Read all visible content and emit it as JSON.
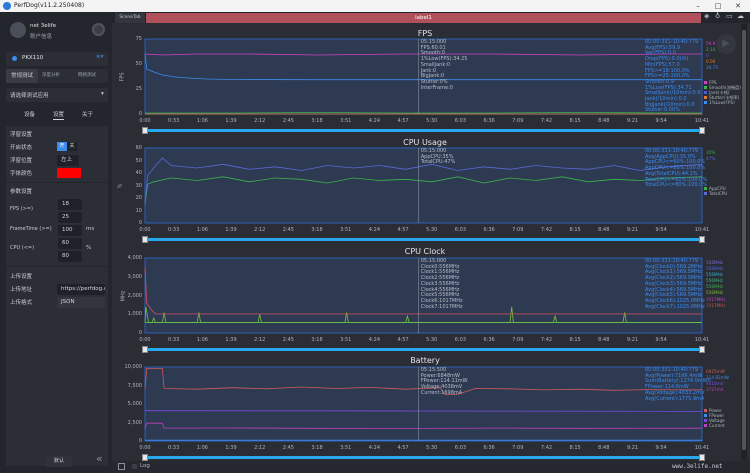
{
  "window": {
    "title": "PerfDog(v11.2.250408)",
    "minimize": "–",
    "maximize": "□",
    "close": "✕"
  },
  "sidebar": {
    "user_name": "net 3elife",
    "account_label": "账户信息",
    "device": "PKX110",
    "mode_tabs": [
      "常规测试",
      "深度分析",
      "网络测试"
    ],
    "app_select_placeholder": "请选择测试应用",
    "sub_tabs": [
      "设备",
      "设置",
      "关于"
    ],
    "float_settings": {
      "title": "浮窗设置",
      "status_label": "开启状态",
      "on": "开",
      "off": "关",
      "position_label": "浮窗位置",
      "position_value": "左上",
      "font_color_label": "字体颜色",
      "font_color": "#ff0000"
    },
    "param_settings": {
      "title": "参数设置",
      "fps_label": "FPS (>=)",
      "fps_values": [
        "18",
        "25"
      ],
      "frametime_label": "FrameTime (>=)",
      "frametime_value": "100",
      "frametime_unit": "ms",
      "cpu_label": "CPU (<=)",
      "cpu_values": [
        "60",
        "80"
      ],
      "cpu_unit": "%"
    },
    "upload_settings": {
      "title": "上传设置",
      "address_label": "上传地址",
      "address_value": "https://perfdog.q",
      "format_label": "上传格式",
      "format_value": "JSON"
    },
    "default_button": "默认",
    "collapse": "«"
  },
  "tabbar": {
    "scene_tab": "SceneTab",
    "label": "label1",
    "label_color": "#b0505a"
  },
  "footer": {
    "log_label": "Log"
  },
  "watermark": "www.3elife.net",
  "time_ticks": [
    "0:00",
    "0:33",
    "1:06",
    "1:39",
    "2:12",
    "2:45",
    "3:18",
    "3:51",
    "4:24",
    "4:57",
    "5:30",
    "6:03",
    "6:36",
    "7:09",
    "7:42",
    "8:15",
    "8:48",
    "9:21",
    "9:54",
    "10:41"
  ],
  "chart_data": [
    {
      "type": "line",
      "title": "FPS",
      "ylabel": "FPS",
      "ylim": [
        0,
        75
      ],
      "yticks": [
        "0",
        "25",
        "50",
        "75"
      ],
      "xlim_seconds": [
        0,
        641
      ],
      "cursor": "5:15",
      "series": [
        {
          "name": "FPS",
          "color": "#d040c8",
          "x": [
            0,
            20,
            60,
            120,
            200,
            300,
            400,
            500,
            600,
            641
          ],
          "y": [
            60,
            59,
            60,
            60,
            59,
            60,
            60,
            59,
            60,
            60
          ]
        },
        {
          "name": "Smooth(流畅度)",
          "color": "#3cb44b",
          "x": [
            0,
            100,
            200,
            300,
            400,
            500,
            600,
            641
          ],
          "y": [
            1,
            1,
            1.5,
            1,
            1,
            1.5,
            1,
            1
          ]
        },
        {
          "name": "Jank(卡顿)",
          "color": "#4a5ae0",
          "x": [
            0,
            641
          ],
          "y": [
            0,
            0
          ]
        },
        {
          "name": "Stutter(卡顿率)",
          "color": "#e07a30",
          "x": [
            0,
            641
          ],
          "y": [
            0,
            0
          ]
        },
        {
          "name": "1%Low(FPS)",
          "color": "#3d8cf0",
          "x": [
            0,
            2,
            10,
            20,
            35,
            50,
            70,
            100,
            200,
            400,
            641
          ],
          "y": [
            60,
            45,
            42,
            39,
            37,
            36,
            35,
            34.5,
            34.3,
            34.3,
            34.3
          ]
        }
      ],
      "cursor_text": [
        "05:15:000",
        "FPS:60.01",
        "Smooth:0",
        "1%Low(FPS):34.25",
        "SmallJank:0",
        "Jank:0",
        "BigJank:0",
        "Stutter:0%",
        "InterFrame:0"
      ],
      "stats": [
        "00:00:331-10:40:779",
        "Avg(FPS):59.9",
        "Var(FPS):0.0",
        "Drop(FPS):0.0(/h)",
        "Min(FPS):57.0",
        "FPS>=18:100.0%",
        "FPS>=25:100.0%",
        "Smooth:0.9",
        "1%Low(FPS):34.71",
        "SmallJank(/10min):0.9",
        "Jank(/10min):0.0",
        "BigJank(/10min):0.0",
        "Stutter:0.00%"
      ],
      "legend_values": [
        {
          "text": "59.9",
          "color": "#d040c8"
        },
        {
          "text": "2.14",
          "color": "#3cb44b"
        },
        {
          "text": "0",
          "color": "#4a5ae0"
        },
        {
          "text": "0.00",
          "color": "#e07a30"
        },
        {
          "text": "34.75",
          "color": "#3d8cf0"
        }
      ]
    },
    {
      "type": "line",
      "title": "CPU Usage",
      "ylabel": "%",
      "ylim": [
        0,
        60
      ],
      "yticks": [
        "0",
        "10",
        "20",
        "30",
        "40",
        "50",
        "60"
      ],
      "xlim_seconds": [
        0,
        641
      ],
      "cursor": "5:15",
      "series": [
        {
          "name": "AppCPU",
          "color": "#3cb44b",
          "x": [
            0,
            3,
            10,
            30,
            60,
            90,
            120,
            150,
            180,
            210,
            240,
            270,
            300,
            330,
            360,
            390,
            420,
            450,
            480,
            510,
            540,
            570,
            600,
            641
          ],
          "y": [
            15,
            31,
            33,
            36,
            34,
            37,
            33,
            36,
            35,
            32,
            36,
            34,
            35,
            33,
            37,
            32,
            36,
            34,
            37,
            33,
            35,
            34,
            36,
            37
          ]
        },
        {
          "name": "TotalCPU",
          "color": "#5a6ad8",
          "x": [
            0,
            3,
            10,
            20,
            30,
            60,
            90,
            120,
            150,
            180,
            210,
            240,
            270,
            300,
            330,
            360,
            390,
            420,
            450,
            480,
            510,
            540,
            570,
            600,
            641
          ],
          "y": [
            15,
            38,
            44,
            52,
            46,
            44,
            47,
            43,
            45,
            42,
            46,
            44,
            46,
            43,
            47,
            42,
            45,
            43,
            46,
            44,
            43,
            46,
            42,
            45,
            47
          ]
        }
      ],
      "cursor_text": [
        "05:15:000",
        "AppCPU:35%",
        "TotalCPU:47%"
      ],
      "stats": [
        "00:00:331-10:40:779",
        "Avg(AppCPU):35.0%",
        "AppCPU<=60%:100.0%",
        "AppCPU<=80%:100.0%",
        "Avg(TotalCPU):44.1%",
        "TotalCPU<=60%:100.0%",
        "TotalCPU<=80%:100.0%"
      ],
      "legend_values": [
        {
          "text": "35%",
          "color": "#3cb44b"
        },
        {
          "text": "47%",
          "color": "#5a6ad8"
        }
      ]
    },
    {
      "type": "line",
      "title": "CPU Clock",
      "ylabel": "MHz",
      "ylim": [
        0,
        4000
      ],
      "yticks": [
        "0",
        "1,000",
        "2,000",
        "3,000",
        "4,000"
      ],
      "xlim_seconds": [
        0,
        641
      ],
      "cursor": "5:15",
      "series": [
        {
          "name": "Clock0",
          "color": "#7b6ad8",
          "x": [
            0,
            641
          ],
          "y": [
            556,
            556
          ]
        },
        {
          "name": "Clock1",
          "color": "#5a6ad8",
          "x": [
            0,
            641
          ],
          "y": [
            556,
            556
          ]
        },
        {
          "name": "Clock2",
          "color": "#3ab0c8",
          "x": [
            0,
            641
          ],
          "y": [
            556,
            556
          ]
        },
        {
          "name": "Clock3",
          "color": "#3cb47b",
          "x": [
            0,
            641
          ],
          "y": [
            556,
            556
          ]
        },
        {
          "name": "Clock4",
          "color": "#3cb44b",
          "x": [
            0,
            641
          ],
          "y": [
            556,
            556
          ]
        },
        {
          "name": "Clock5",
          "color": "#7bbf3a",
          "x": [
            0,
            1,
            4,
            8,
            10,
            12,
            14,
            20,
            22,
            24,
            60,
            62,
            64,
            130,
            132,
            134,
            230,
            232,
            234,
            300,
            302,
            304,
            420,
            422,
            424,
            470,
            472,
            474,
            550,
            552,
            554,
            641
          ],
          "y": [
            556,
            1400,
            556,
            556,
            800,
            556,
            556,
            556,
            1100,
            556,
            556,
            1100,
            556,
            556,
            1000,
            556,
            556,
            1100,
            556,
            556,
            900,
            556,
            556,
            1400,
            556,
            556,
            900,
            556,
            556,
            1100,
            556,
            556
          ]
        },
        {
          "name": "Clock6",
          "color": "#c040c0",
          "x": [
            0,
            2,
            5,
            8,
            12,
            15,
            641
          ],
          "y": [
            3500,
            1600,
            1400,
            1200,
            1017,
            1017,
            1017
          ]
        },
        {
          "name": "Clock7",
          "color": "#c05050",
          "x": [
            0,
            2,
            5,
            8,
            12,
            15,
            641
          ],
          "y": [
            3500,
            1600,
            1400,
            1200,
            1017,
            1017,
            1017
          ]
        }
      ],
      "cursor_text": [
        "05:15:000",
        "Clock0:556MHz",
        "Clock1:556MHz",
        "Clock2:556MHz",
        "Clock3:556MHz",
        "Clock4:556MHz",
        "Clock5:556MHz",
        "Clock6:1017MHz",
        "Clock7:1017MHz"
      ],
      "stats": [
        "00:00:331-10:40:779",
        "Avg(Clock0):569.2MHz",
        "Avg(Clock1):569.5MHz",
        "Avg(Clock2):569.5MHz",
        "Avg(Clock3):569.5MHz",
        "Avg(Clock4):569.5MHz",
        "Avg(Clock5):569.5MHz",
        "Avg(Clock6):1025.0MHz",
        "Avg(Clock7):1025.0MHz"
      ],
      "legend_values": [
        {
          "text": "556MHz",
          "color": "#7b6ad8"
        },
        {
          "text": "556MHz",
          "color": "#5a6ad8"
        },
        {
          "text": "556MHz",
          "color": "#3ab0c8"
        },
        {
          "text": "556MHz",
          "color": "#3cb47b"
        },
        {
          "text": "556MHz",
          "color": "#3cb44b"
        },
        {
          "text": "556MHz",
          "color": "#7bbf3a"
        },
        {
          "text": "1017MHz",
          "color": "#c040c0"
        },
        {
          "text": "1017MHz",
          "color": "#c05050"
        }
      ]
    },
    {
      "type": "line",
      "title": "Battery",
      "ylabel": "",
      "ylim": [
        0,
        10000
      ],
      "yticks": [
        "0",
        "2,500",
        "5,000",
        "7,500",
        "10,000"
      ],
      "xlim_seconds": [
        0,
        641
      ],
      "cursor": "5:15",
      "series": [
        {
          "name": "Power",
          "color": "#d05a5a",
          "x": [
            0,
            2,
            4,
            20,
            22,
            60,
            100,
            140,
            180,
            220,
            260,
            300,
            340,
            345,
            360,
            380,
            420,
            460,
            500,
            540,
            580,
            620,
            641
          ],
          "y": [
            7000,
            9800,
            9800,
            9800,
            7100,
            7000,
            7200,
            7050,
            7300,
            7100,
            7250,
            7000,
            7200,
            6300,
            6300,
            7100,
            7050,
            6900,
            7000,
            6850,
            6950,
            6900,
            6925
          ]
        },
        {
          "name": "FPower",
          "color": "#3d8cf0",
          "x": [
            0,
            641
          ],
          "y": [
            114,
            114
          ]
        },
        {
          "name": "Voltage",
          "color": "#7a4ae0",
          "x": [
            0,
            641
          ],
          "y": [
            4100,
            4010
          ]
        },
        {
          "name": "Current",
          "color": "#c040c0",
          "x": [
            0,
            2,
            4,
            20,
            22,
            100,
            200,
            300,
            400,
            500,
            641
          ],
          "y": [
            1700,
            2400,
            2400,
            2400,
            1750,
            1760,
            1720,
            1700,
            1740,
            1710,
            1727
          ]
        }
      ],
      "cursor_text": [
        "05:15:500",
        "Power:6848mW",
        "FPower:114.11mW",
        "Voltage:4038mV",
        "Current:1698mA"
      ],
      "stats": [
        "00:00:331-10:40:779",
        "Avg(Power):7166.4mW",
        "Sum(Battery):1274.0mWh",
        "FPower:114.6mW",
        "Avg(Voltage):4033.2mV",
        "Avg(Current):1775.9mA"
      ],
      "legend_values": [
        {
          "text": "6925mW",
          "color": "#d05a5a"
        },
        {
          "text": "114.82mW",
          "color": "#3d8cf0"
        },
        {
          "text": "4010mV",
          "color": "#7a4ae0"
        },
        {
          "text": "1727mA",
          "color": "#c040c0"
        }
      ]
    }
  ]
}
